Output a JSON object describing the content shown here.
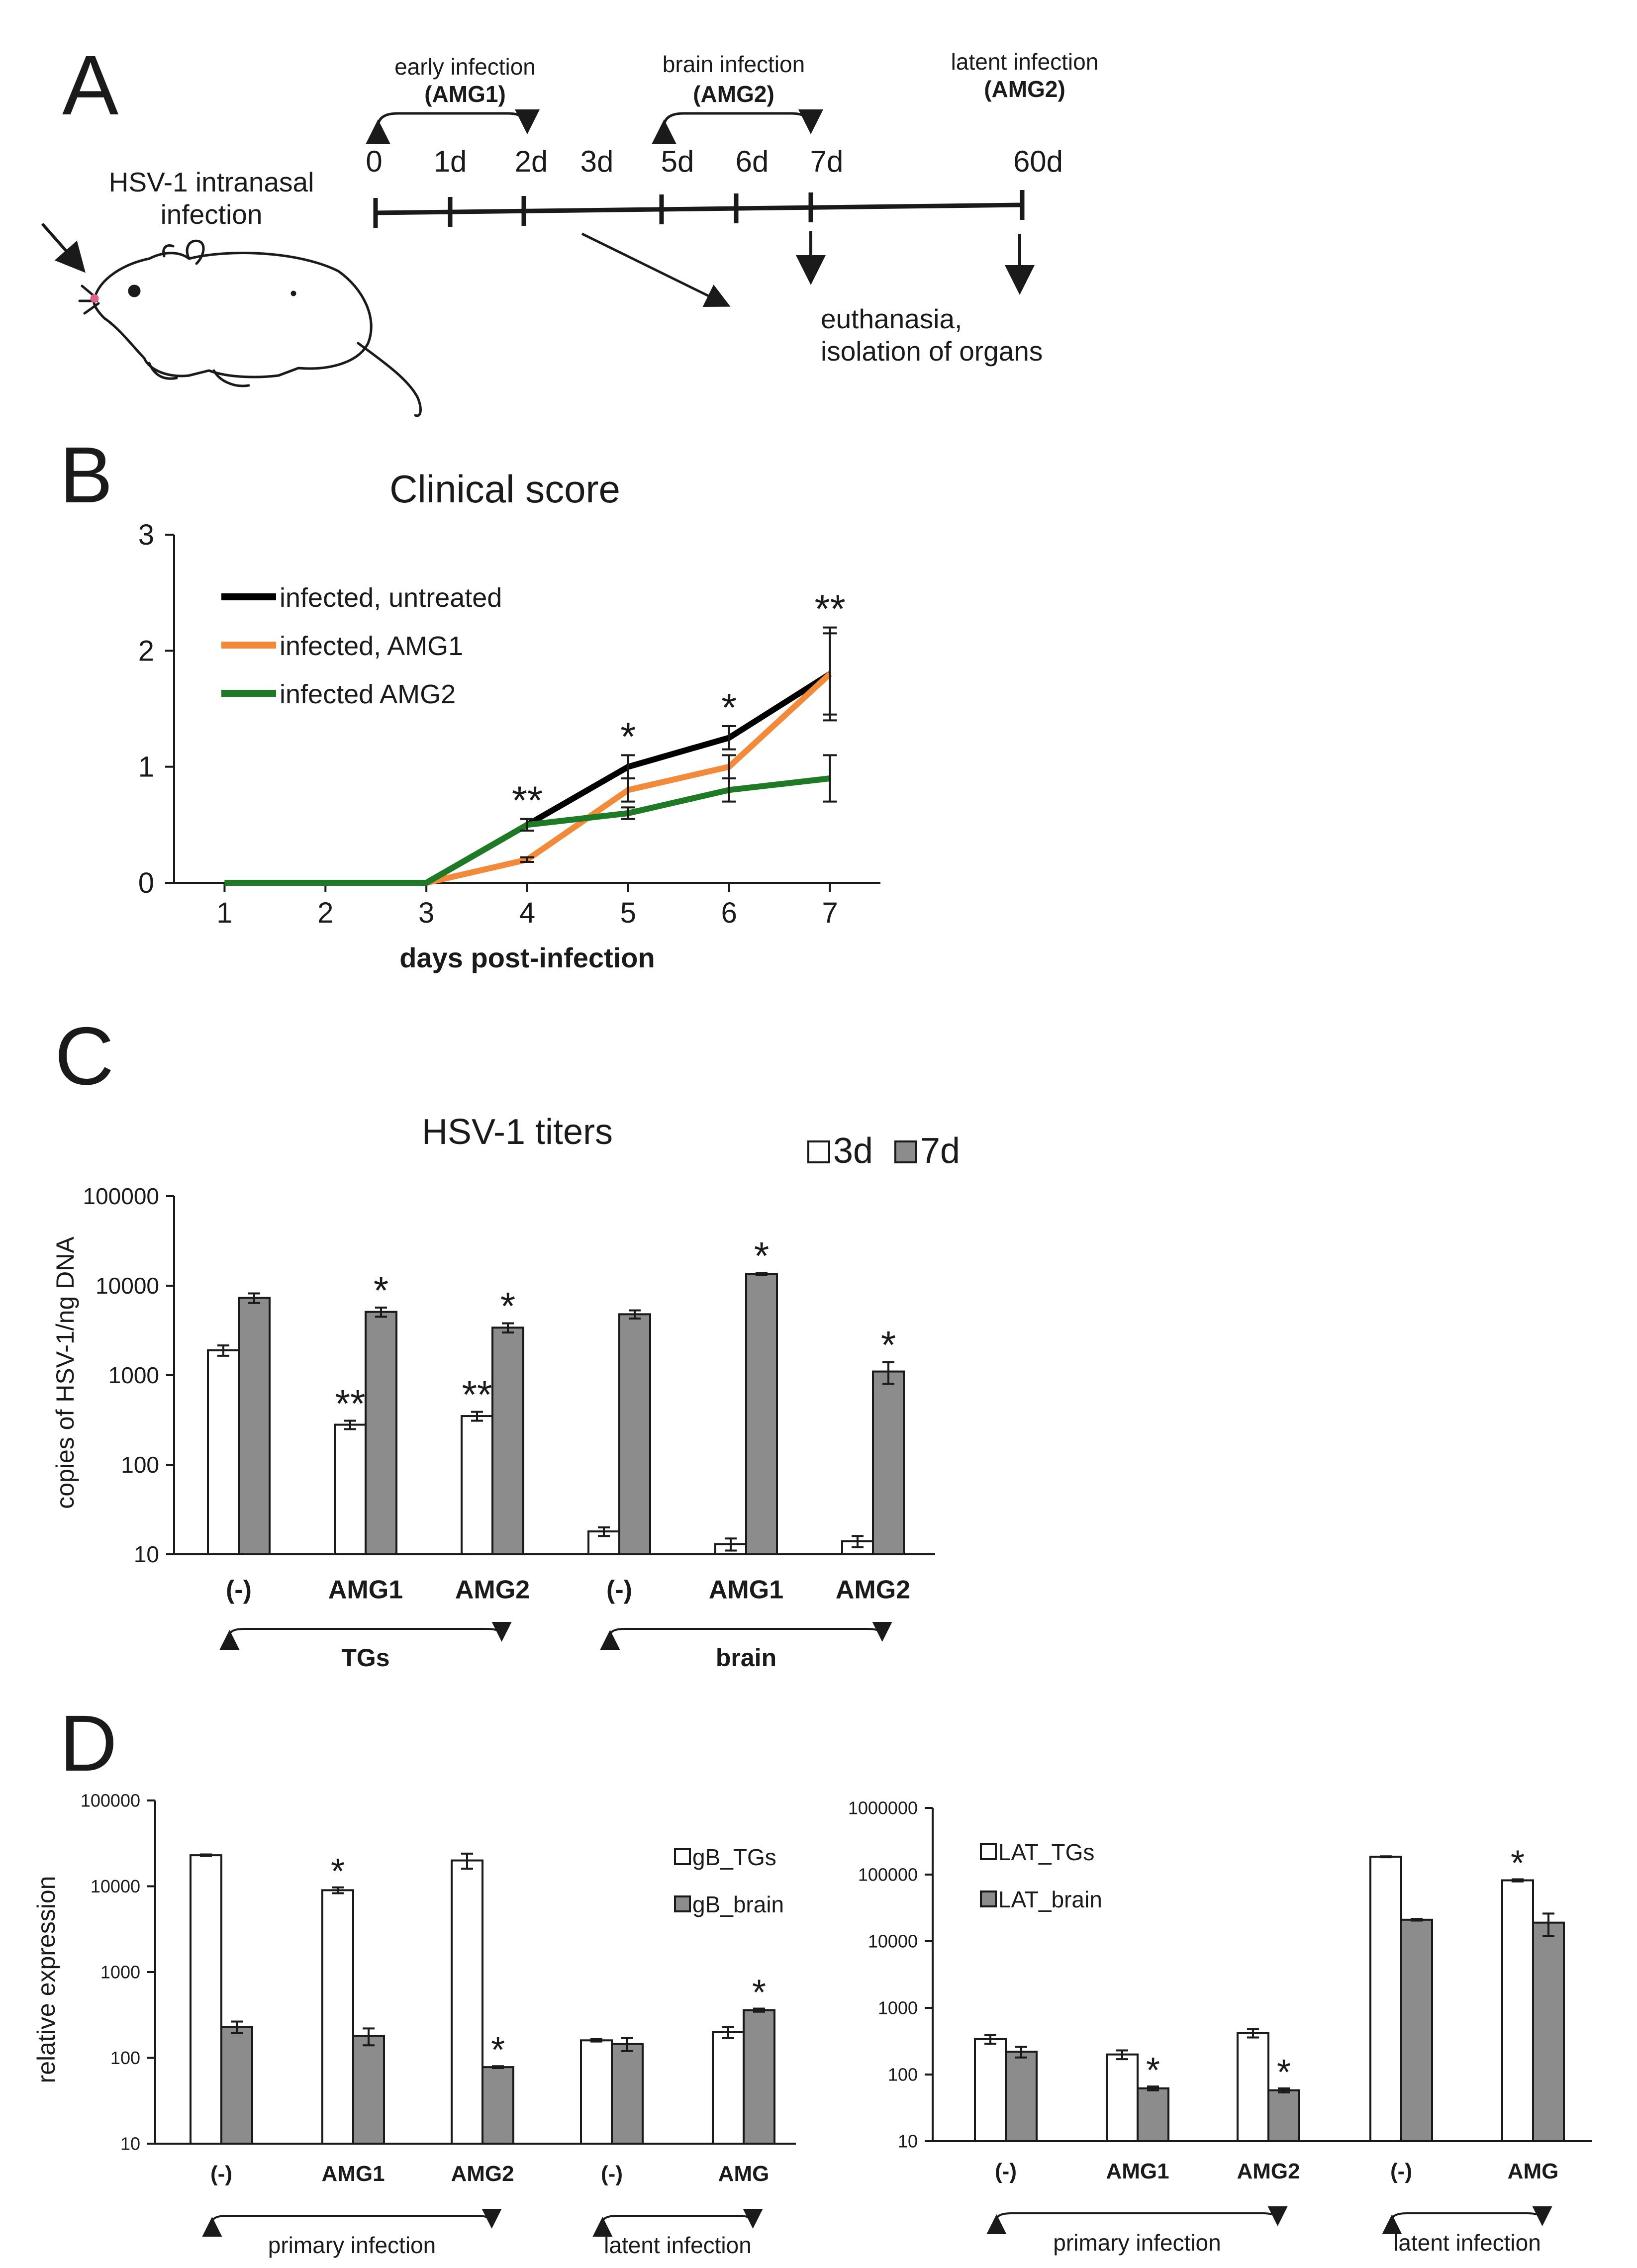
{
  "panel_letters": {
    "a": "A",
    "b": "B",
    "c": "C",
    "d": "D"
  },
  "panel_a": {
    "host_label_1": "HSV-1 intranasal",
    "host_label_2": "infection",
    "phases": [
      {
        "name": "early infection",
        "treatment": "(AMG1)"
      },
      {
        "name": "brain infection",
        "treatment": "(AMG2)"
      },
      {
        "name": "latent infection",
        "treatment": "(AMG2)"
      }
    ],
    "timepoints": [
      "0",
      "1d",
      "2d",
      "3d",
      "5d",
      "6d",
      "7d",
      "60d"
    ],
    "outcome_1": "euthanasia,",
    "outcome_2": "isolation of organs",
    "colors": {
      "line": "#1a1a1a"
    }
  },
  "chart_data": [
    {
      "id": "clinical_score",
      "type": "line",
      "title": "Clinical score",
      "xlabel": "days post-infection",
      "ylabel": "",
      "x": [
        1,
        2,
        3,
        4,
        5,
        6,
        7
      ],
      "xticks": [
        "1",
        "2",
        "3",
        "4",
        "5",
        "6",
        "7"
      ],
      "ylim": [
        0,
        3
      ],
      "yticks": [
        "0",
        "1",
        "2",
        "3"
      ],
      "legend_position": "top-left",
      "series": [
        {
          "name": "infected, untreated",
          "color": "#000000",
          "values": [
            0,
            0,
            0,
            0.5,
            1.0,
            1.25,
            1.8
          ],
          "errors": [
            0,
            0,
            0,
            0.05,
            0.1,
            0.1,
            0.4
          ]
        },
        {
          "name": "infected, AMG1",
          "color": "#f28a3c",
          "values": [
            0,
            0,
            0,
            0.2,
            0.8,
            1.0,
            1.8
          ],
          "errors": [
            0,
            0,
            0,
            0.02,
            0.1,
            0.1,
            0.35
          ]
        },
        {
          "name": "infected AMG2",
          "color": "#1e7a25",
          "values": [
            0,
            0,
            0,
            0.5,
            0.6,
            0.8,
            0.9
          ],
          "errors": [
            0,
            0,
            0,
            0.05,
            0.05,
            0.1,
            0.2
          ]
        }
      ],
      "annotations": [
        {
          "day": 4,
          "label": "**"
        },
        {
          "day": 5,
          "label": "*"
        },
        {
          "day": 6,
          "label": "*"
        },
        {
          "day": 7,
          "label": "**"
        }
      ]
    },
    {
      "id": "hsv1_titers",
      "type": "bar",
      "scale": "log",
      "title": "HSV-1 titers",
      "ylabel": "copies of HSV-1/ng DNA",
      "ylim": [
        10,
        100000
      ],
      "yticks": [
        "10",
        "100",
        "1000",
        "10000",
        "100000"
      ],
      "categories": [
        "(-)",
        "AMG1",
        "AMG2",
        "(-)",
        "AMG1",
        "AMG2"
      ],
      "groups": [
        {
          "label": "TGs",
          "from": 0,
          "to": 2
        },
        {
          "label": "brain",
          "from": 3,
          "to": 5
        }
      ],
      "legend_position": "top-right",
      "series": [
        {
          "name": "3d",
          "color": "#ffffff",
          "values": [
            1900,
            280,
            350,
            18,
            13,
            14
          ],
          "errors": [
            250,
            30,
            40,
            2,
            2,
            2
          ],
          "marks": [
            "",
            "**",
            "**",
            "",
            "",
            ""
          ]
        },
        {
          "name": "7d",
          "color": "#8c8c8c",
          "values": [
            7300,
            5100,
            3400,
            4800,
            13500,
            1100
          ],
          "errors": [
            900,
            600,
            400,
            500,
            400,
            300
          ],
          "marks": [
            "",
            "*",
            "*",
            "",
            "*",
            "*"
          ]
        }
      ]
    },
    {
      "id": "gB_expression",
      "type": "bar",
      "scale": "log",
      "title": "",
      "ylabel": "relative expression",
      "ylim": [
        10,
        100000
      ],
      "yticks": [
        "10",
        "100",
        "1000",
        "10000",
        "100000"
      ],
      "categories": [
        "(-)",
        "AMG1",
        "AMG2",
        "(-)",
        "AMG"
      ],
      "groups": [
        {
          "label": "primary infection",
          "from": 0,
          "to": 2
        },
        {
          "label": "latent infection",
          "from": 3,
          "to": 4
        }
      ],
      "legend_position": "top-right",
      "series": [
        {
          "name": "gB_TGs",
          "color": "#ffffff",
          "values": [
            23000,
            9000,
            20000,
            160,
            200
          ],
          "errors": [
            500,
            700,
            4000,
            5,
            30
          ],
          "marks": [
            "",
            "*",
            "",
            "",
            ""
          ]
        },
        {
          "name": "gB_brain",
          "color": "#8c8c8c",
          "values": [
            230,
            180,
            78,
            145,
            360
          ],
          "errors": [
            35,
            40,
            2,
            25,
            15
          ],
          "marks": [
            "",
            "",
            "*",
            "",
            "*"
          ]
        }
      ]
    },
    {
      "id": "LAT_expression",
      "type": "bar",
      "scale": "log",
      "title": "",
      "ylabel": "",
      "ylim": [
        10,
        1000000
      ],
      "yticks": [
        "10",
        "100",
        "1000",
        "10000",
        "100000",
        "1000000"
      ],
      "categories": [
        "(-)",
        "AMG1",
        "AMG2",
        "(-)",
        "AMG"
      ],
      "groups": [
        {
          "label": "primary infection",
          "from": 0,
          "to": 2
        },
        {
          "label": "latent infection",
          "from": 3,
          "to": 4
        }
      ],
      "legend_position": "top-left",
      "series": [
        {
          "name": "LAT_TGs",
          "color": "#ffffff",
          "values": [
            340,
            200,
            420,
            185000,
            82000
          ],
          "errors": [
            50,
            30,
            60,
            3000,
            3000
          ],
          "marks": [
            "",
            "",
            "",
            "",
            "*"
          ]
        },
        {
          "name": "LAT_brain",
          "color": "#8c8c8c",
          "values": [
            220,
            62,
            58,
            21000,
            19000
          ],
          "errors": [
            40,
            4,
            4,
            600,
            7000
          ],
          "marks": [
            "",
            "*",
            "*",
            "",
            ""
          ]
        }
      ]
    }
  ]
}
